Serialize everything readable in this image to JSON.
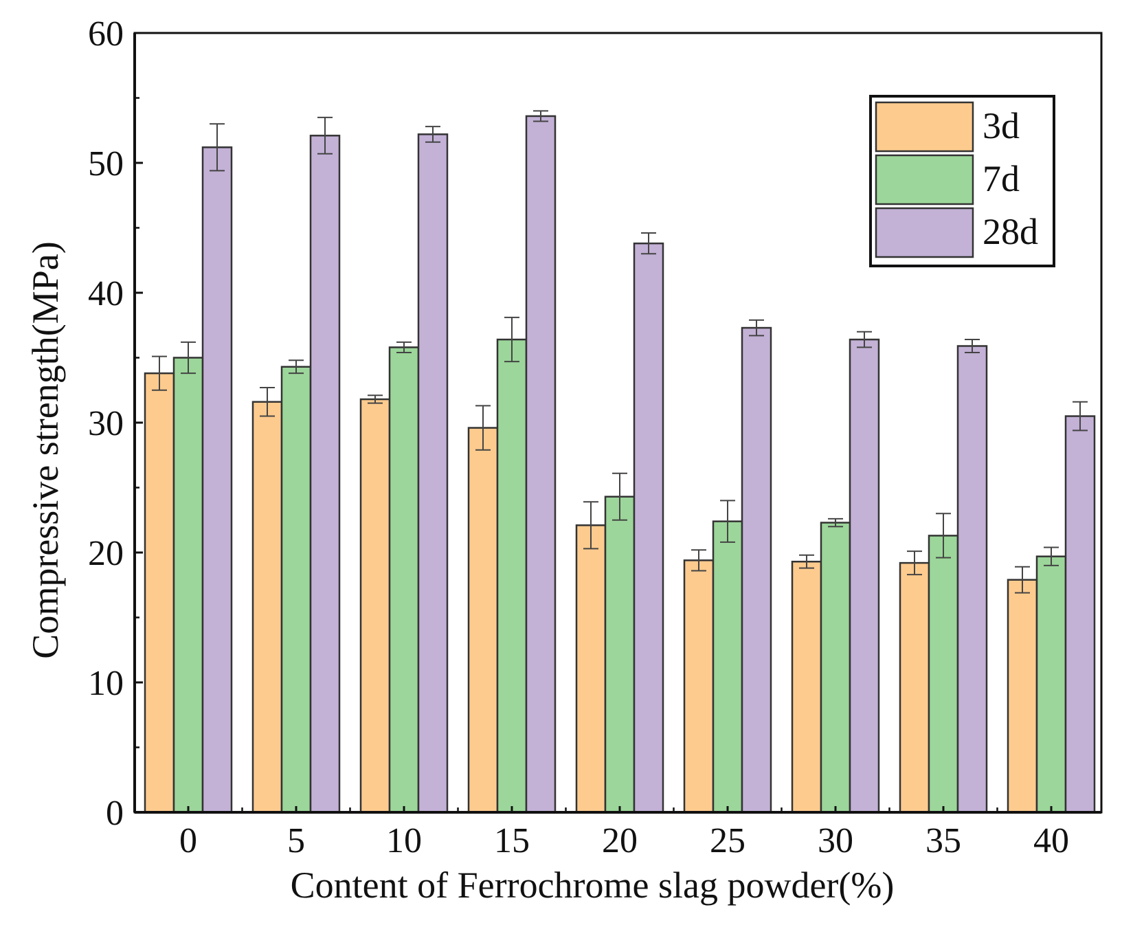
{
  "chart_data": {
    "type": "bar",
    "title": "",
    "xlabel": "Content of Ferrochrome slag powder(%)",
    "ylabel": "Compressive strength(MPa)",
    "ylim": [
      0,
      60
    ],
    "yticks": [
      "0",
      "10",
      "20",
      "30",
      "40",
      "50",
      "60"
    ],
    "categories": [
      "0",
      "5",
      "10",
      "15",
      "20",
      "25",
      "30",
      "35",
      "40"
    ],
    "legend_position": "top-right",
    "series": [
      {
        "name": "3d",
        "color": "#FDCB8E",
        "values": [
          33.8,
          31.6,
          31.8,
          29.6,
          22.1,
          19.4,
          19.3,
          19.2,
          17.9
        ],
        "errors": [
          1.3,
          1.1,
          0.3,
          1.7,
          1.8,
          0.8,
          0.5,
          0.9,
          1.0
        ]
      },
      {
        "name": "7d",
        "color": "#9CD69A",
        "values": [
          35.0,
          34.3,
          35.8,
          36.4,
          24.3,
          22.4,
          22.3,
          21.3,
          19.7
        ],
        "errors": [
          1.2,
          0.5,
          0.4,
          1.7,
          1.8,
          1.6,
          0.3,
          1.7,
          0.7
        ]
      },
      {
        "name": "28d",
        "color": "#C3B1D6",
        "values": [
          51.2,
          52.1,
          52.2,
          53.6,
          43.8,
          37.3,
          36.4,
          35.9,
          30.5
        ],
        "errors": [
          1.8,
          1.4,
          0.6,
          0.4,
          0.8,
          0.6,
          0.6,
          0.5,
          1.1
        ]
      }
    ]
  }
}
